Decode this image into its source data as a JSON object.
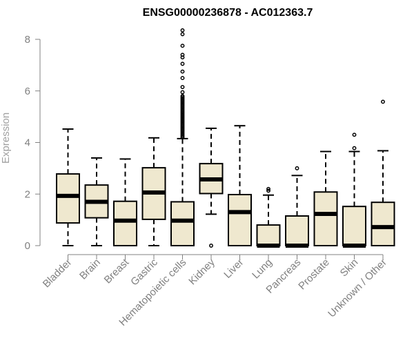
{
  "chart_data": {
    "type": "boxplot",
    "title": "ENSG00000236878 - AC012363.7",
    "xlabel": "",
    "ylabel": "Expression",
    "ylim": [
      0,
      8.3
    ],
    "yticks": [
      0,
      2,
      4,
      6,
      8
    ],
    "grid": false,
    "box_fill": "#efe8cf",
    "categories": [
      "Bladder",
      "Brain",
      "Breast",
      "Gastric",
      "Hematopoietic cells",
      "Kidney",
      "Liver",
      "Lung",
      "Pancreas",
      "Prostate",
      "Skin",
      "Unknown / Other"
    ],
    "boxes": [
      {
        "q1": 0.88,
        "median": 1.93,
        "q3": 2.78,
        "whisker_low": 0.0,
        "whisker_high": 4.52,
        "outliers": []
      },
      {
        "q1": 1.08,
        "median": 1.7,
        "q3": 2.35,
        "whisker_low": 0.0,
        "whisker_high": 3.4,
        "outliers": []
      },
      {
        "q1": 0.0,
        "median": 0.97,
        "q3": 1.72,
        "whisker_low": 0.0,
        "whisker_high": 3.36,
        "outliers": []
      },
      {
        "q1": 1.02,
        "median": 2.06,
        "q3": 3.02,
        "whisker_low": 0.0,
        "whisker_high": 4.18,
        "outliers": []
      },
      {
        "q1": 0.0,
        "median": 0.97,
        "q3": 1.7,
        "whisker_low": 0.0,
        "whisker_high": 4.15,
        "outliers": [
          4.2,
          4.25,
          4.3,
          4.35,
          4.4,
          4.45,
          4.5,
          4.55,
          4.6,
          4.65,
          4.7,
          4.75,
          4.8,
          4.85,
          4.9,
          4.95,
          5.0,
          5.05,
          5.1,
          5.15,
          5.2,
          5.25,
          5.3,
          5.35,
          5.4,
          5.45,
          5.5,
          5.55,
          5.6,
          5.65,
          5.7,
          5.75,
          5.8,
          5.95,
          6.15,
          6.5,
          6.75,
          7.05,
          7.3,
          7.4,
          7.75,
          8.2,
          8.35
        ]
      },
      {
        "q1": 2.02,
        "median": 2.57,
        "q3": 3.18,
        "whisker_low": 1.22,
        "whisker_high": 4.55,
        "outliers": [
          0.0
        ]
      },
      {
        "q1": 0.0,
        "median": 1.3,
        "q3": 1.98,
        "whisker_low": 0.0,
        "whisker_high": 4.65,
        "outliers": []
      },
      {
        "q1": 0.0,
        "median": 0.0,
        "q3": 0.8,
        "whisker_low": 0.0,
        "whisker_high": 1.96,
        "outliers": [
          2.13,
          2.2
        ]
      },
      {
        "q1": 0.0,
        "median": 0.0,
        "q3": 1.15,
        "whisker_low": 0.0,
        "whisker_high": 2.72,
        "outliers": [
          3.0
        ]
      },
      {
        "q1": 0.0,
        "median": 1.23,
        "q3": 2.08,
        "whisker_low": 0.0,
        "whisker_high": 3.65,
        "outliers": []
      },
      {
        "q1": 0.0,
        "median": 0.0,
        "q3": 1.52,
        "whisker_low": 0.0,
        "whisker_high": 3.65,
        "outliers": [
          3.78,
          4.3
        ]
      },
      {
        "q1": 0.0,
        "median": 0.72,
        "q3": 1.68,
        "whisker_low": 0.0,
        "whisker_high": 3.68,
        "outliers": [
          5.58
        ]
      }
    ]
  }
}
